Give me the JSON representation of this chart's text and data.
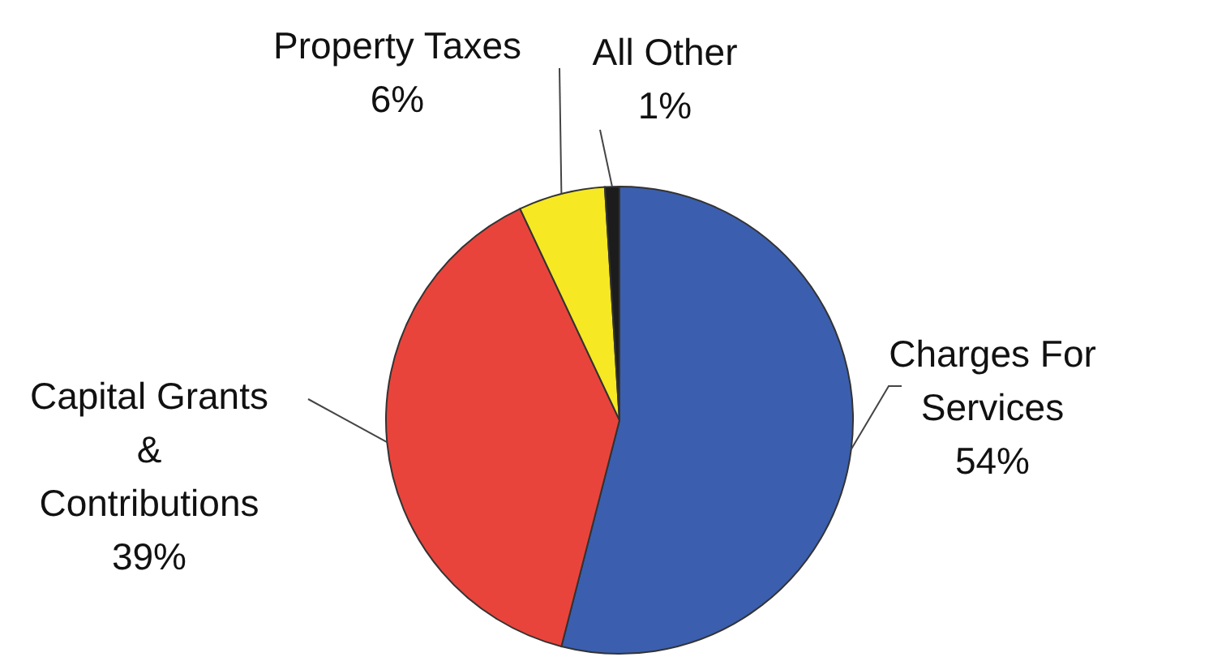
{
  "chart_data": {
    "type": "pie",
    "categories": [
      "Charges For Services",
      "Capital Grants & Contributions",
      "Property Taxes",
      "All Other"
    ],
    "values": [
      54,
      39,
      6,
      1
    ],
    "colors": [
      "#3b5fae",
      "#e9443b",
      "#f6e823",
      "#1c1c1c"
    ],
    "value_labels": [
      "54%",
      "39%",
      "6%",
      "1%"
    ]
  }
}
